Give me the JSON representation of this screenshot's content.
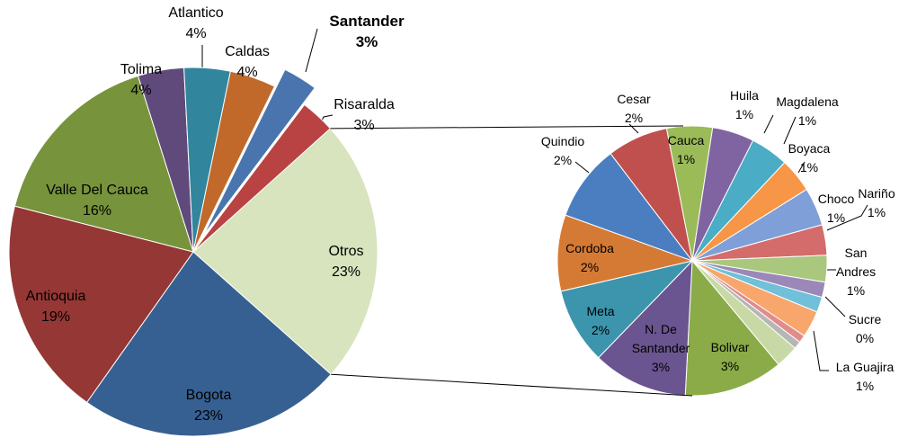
{
  "chart_data": [
    {
      "type": "pie",
      "categories": [
        "Otros",
        "Bogota",
        "Antioquia",
        "Valle Del Cauca",
        "Tolima",
        "Atlantico",
        "Caldas",
        "Santander",
        "Risaralda"
      ],
      "values": [
        23,
        23,
        19,
        16,
        4,
        4,
        4,
        3,
        3
      ],
      "value_labels": [
        "23%",
        "23%",
        "19%",
        "16%",
        "4%",
        "4%",
        "4%",
        "3%",
        "3%"
      ],
      "colors": [
        "#d7e4bd",
        "#376092",
        "#953735",
        "#77933c",
        "#604a7b",
        "#31859c",
        "#c0692a",
        "#4a74ad",
        "#b94343"
      ]
    },
    {
      "type": "pie",
      "categories": [
        "Cauca",
        "Huila",
        "Magdalena",
        "Boyaca",
        "Choco",
        "Nariño",
        "San Andres",
        null,
        "Sucre",
        null,
        null,
        null,
        "La Guajira",
        "Bolivar",
        "N. De Santander",
        "Meta",
        "Cordoba",
        "Quindio",
        "Cesar"
      ],
      "values": [
        1.2,
        1.1,
        1.0,
        0.9,
        1.0,
        0.8,
        0.7,
        0.4,
        0.4,
        0.7,
        0.2,
        0.2,
        0.6,
        2.6,
        2.5,
        2.0,
        2.0,
        2.0,
        1.6
      ],
      "value_labels": [
        "1%",
        "1%",
        "1%",
        "1%",
        "1%",
        "1%",
        "1%",
        null,
        "0%",
        null,
        null,
        null,
        "1%",
        "3%",
        "3%",
        "2%",
        "2%",
        "2%",
        "2%"
      ],
      "colors": [
        "#9bbb59",
        "#8064a2",
        "#4bacc6",
        "#f79646",
        "#7f9fd8",
        "#d46c6c",
        "#a9c77d",
        "#9b88b8",
        "#6fc0d8",
        "#f8a66c",
        "#e08c8c",
        "#b6b6b6",
        "#c9d9a6",
        "#8aab48",
        "#6a5590",
        "#3d95ad",
        "#d57a35",
        "#4a7ec0",
        "#c0504d"
      ]
    }
  ]
}
